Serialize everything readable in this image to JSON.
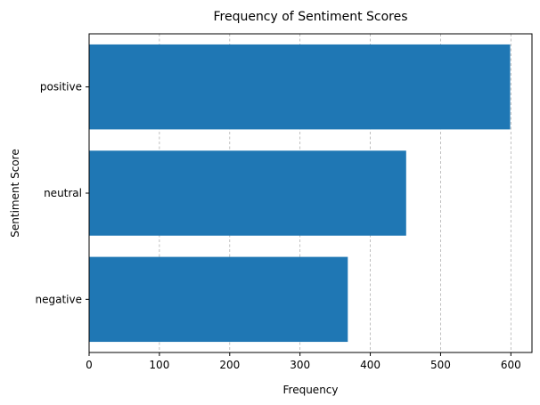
{
  "chart_data": {
    "type": "bar",
    "orientation": "horizontal",
    "title": "Frequency of Sentiment Scores",
    "xlabel": "Frequency",
    "ylabel": "Sentiment Score",
    "categories": [
      "negative",
      "neutral",
      "positive"
    ],
    "values": [
      368,
      451,
      599
    ],
    "xlim": [
      0,
      630
    ],
    "xticks": [
      0,
      100,
      200,
      300,
      400,
      500,
      600
    ],
    "grid": "x-dashed",
    "bar_color": "#1f77b4"
  }
}
